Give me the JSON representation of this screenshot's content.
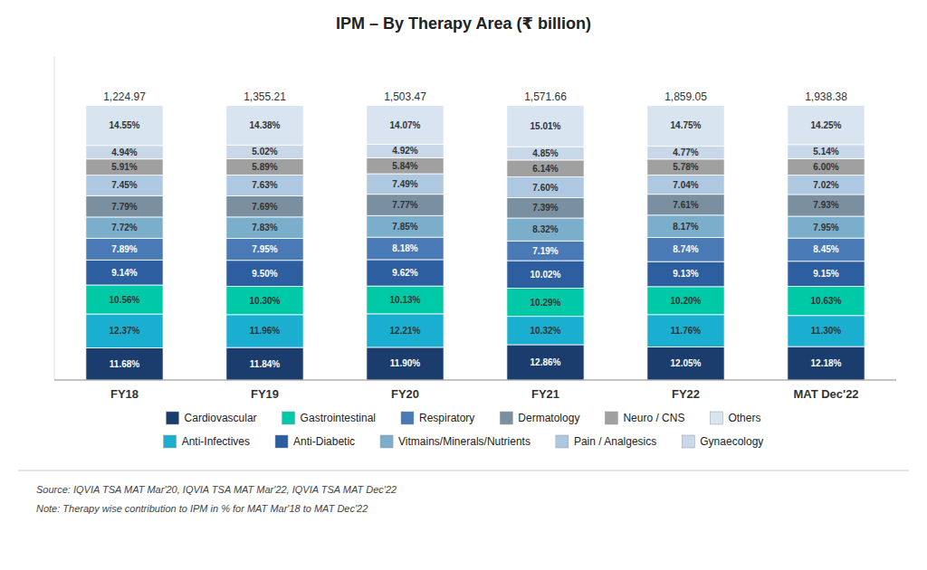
{
  "chart_data": {
    "type": "bar",
    "stacked": true,
    "title": "IPM – By Therapy Area (₹ billion)",
    "categories": [
      "FY18",
      "FY19",
      "FY20",
      "FY21",
      "FY22",
      "MAT Dec'22"
    ],
    "series": [
      {
        "name": "Cardiovascular",
        "color": "#1a3d6e",
        "values": [
          11.68,
          11.84,
          11.9,
          12.86,
          12.05,
          12.18
        ],
        "value_labels": [
          "11.68%",
          "11.84%",
          "11.90%",
          "12.86%",
          "12.05%",
          "12.18%"
        ]
      },
      {
        "name": "Anti-Infectives",
        "color": "#1aafd0",
        "values": [
          12.37,
          11.96,
          12.21,
          10.32,
          11.76,
          11.3
        ],
        "value_labels": [
          "12.37%",
          "11.96%",
          "12.21%",
          "10.32%",
          "11.76%",
          "11.30%"
        ]
      },
      {
        "name": "Gastrointestinal",
        "color": "#00c9a7",
        "values": [
          10.56,
          10.3,
          10.13,
          10.29,
          10.2,
          10.63
        ],
        "value_labels": [
          "10.56%",
          "10.30%",
          "10.13%",
          "10.29%",
          "10.20%",
          "10.63%"
        ]
      },
      {
        "name": "Anti-Diabetic",
        "color": "#2d5fa0",
        "values": [
          9.14,
          9.5,
          9.62,
          10.02,
          9.13,
          9.15
        ],
        "value_labels": [
          "9.14%",
          "9.50%",
          "9.62%",
          "10.02%",
          "9.13%",
          "9.15%"
        ]
      },
      {
        "name": "Respiratory",
        "color": "#4a7ab5",
        "values": [
          7.89,
          7.95,
          8.18,
          7.19,
          8.74,
          8.45
        ],
        "value_labels": [
          "7.89%",
          "7.95%",
          "8.18%",
          "7.19%",
          "8.74%",
          "8.45%"
        ]
      },
      {
        "name": "Vitmains/Minerals/Nutrients",
        "color": "#7aaecb",
        "values": [
          7.72,
          7.83,
          7.85,
          8.32,
          8.17,
          7.95
        ],
        "value_labels": [
          "7.72%",
          "7.83%",
          "7.85%",
          "8.32%",
          "8.17%",
          "7.95%"
        ]
      },
      {
        "name": "Dermatology",
        "color": "#7a8fa0",
        "values": [
          7.79,
          7.69,
          7.77,
          7.39,
          7.61,
          7.93
        ],
        "value_labels": [
          "7.79%",
          "7.69%",
          "7.77%",
          "7.39%",
          "7.61%",
          "7.93%"
        ]
      },
      {
        "name": "Pain / Analgesics",
        "color": "#adc8e0",
        "values": [
          7.45,
          7.63,
          7.49,
          7.6,
          7.04,
          7.02
        ],
        "value_labels": [
          "7.45%",
          "7.63%",
          "7.49%",
          "7.60%",
          "7.04%",
          "7.02%"
        ]
      },
      {
        "name": "Neuro / CNS",
        "color": "#a0a0a0",
        "values": [
          5.91,
          5.89,
          5.84,
          6.14,
          5.78,
          6.0
        ],
        "value_labels": [
          "5.91%",
          "5.89%",
          "5.84%",
          "6.14%",
          "5.78%",
          "6.00%"
        ]
      },
      {
        "name": "Gynaecology",
        "color": "#c8d8e8",
        "values": [
          4.94,
          5.02,
          4.92,
          4.85,
          4.77,
          5.14
        ],
        "value_labels": [
          "4.94%",
          "5.02%",
          "4.92%",
          "4.85%",
          "4.77%",
          "5.14%"
        ]
      },
      {
        "name": "Others",
        "color": "#d8e4f0",
        "values": [
          14.55,
          14.38,
          14.07,
          15.01,
          14.75,
          14.25
        ],
        "value_labels": [
          "14.55%",
          "14.38%",
          "14.07%",
          "15.01%",
          "14.75%",
          "14.25%"
        ]
      }
    ],
    "annotations": [
      "1,224.97",
      "1,355.21",
      "1,503.47",
      "1,571.66",
      "1,859.05",
      "1,938.38"
    ],
    "source": "Source: IQVIA TSA MAT Mar'20, IQVIA TSA MAT Mar'22, IQVIA TSA MAT Dec'22",
    "note": "Note: Therapy wise contribution to IPM in % for MAT Mar'18 to MAT Dec'22",
    "ylim": [
      0,
      118
    ],
    "data_labels": true,
    "tick_labels": "x",
    "grid": false,
    "legend": "bottom"
  }
}
